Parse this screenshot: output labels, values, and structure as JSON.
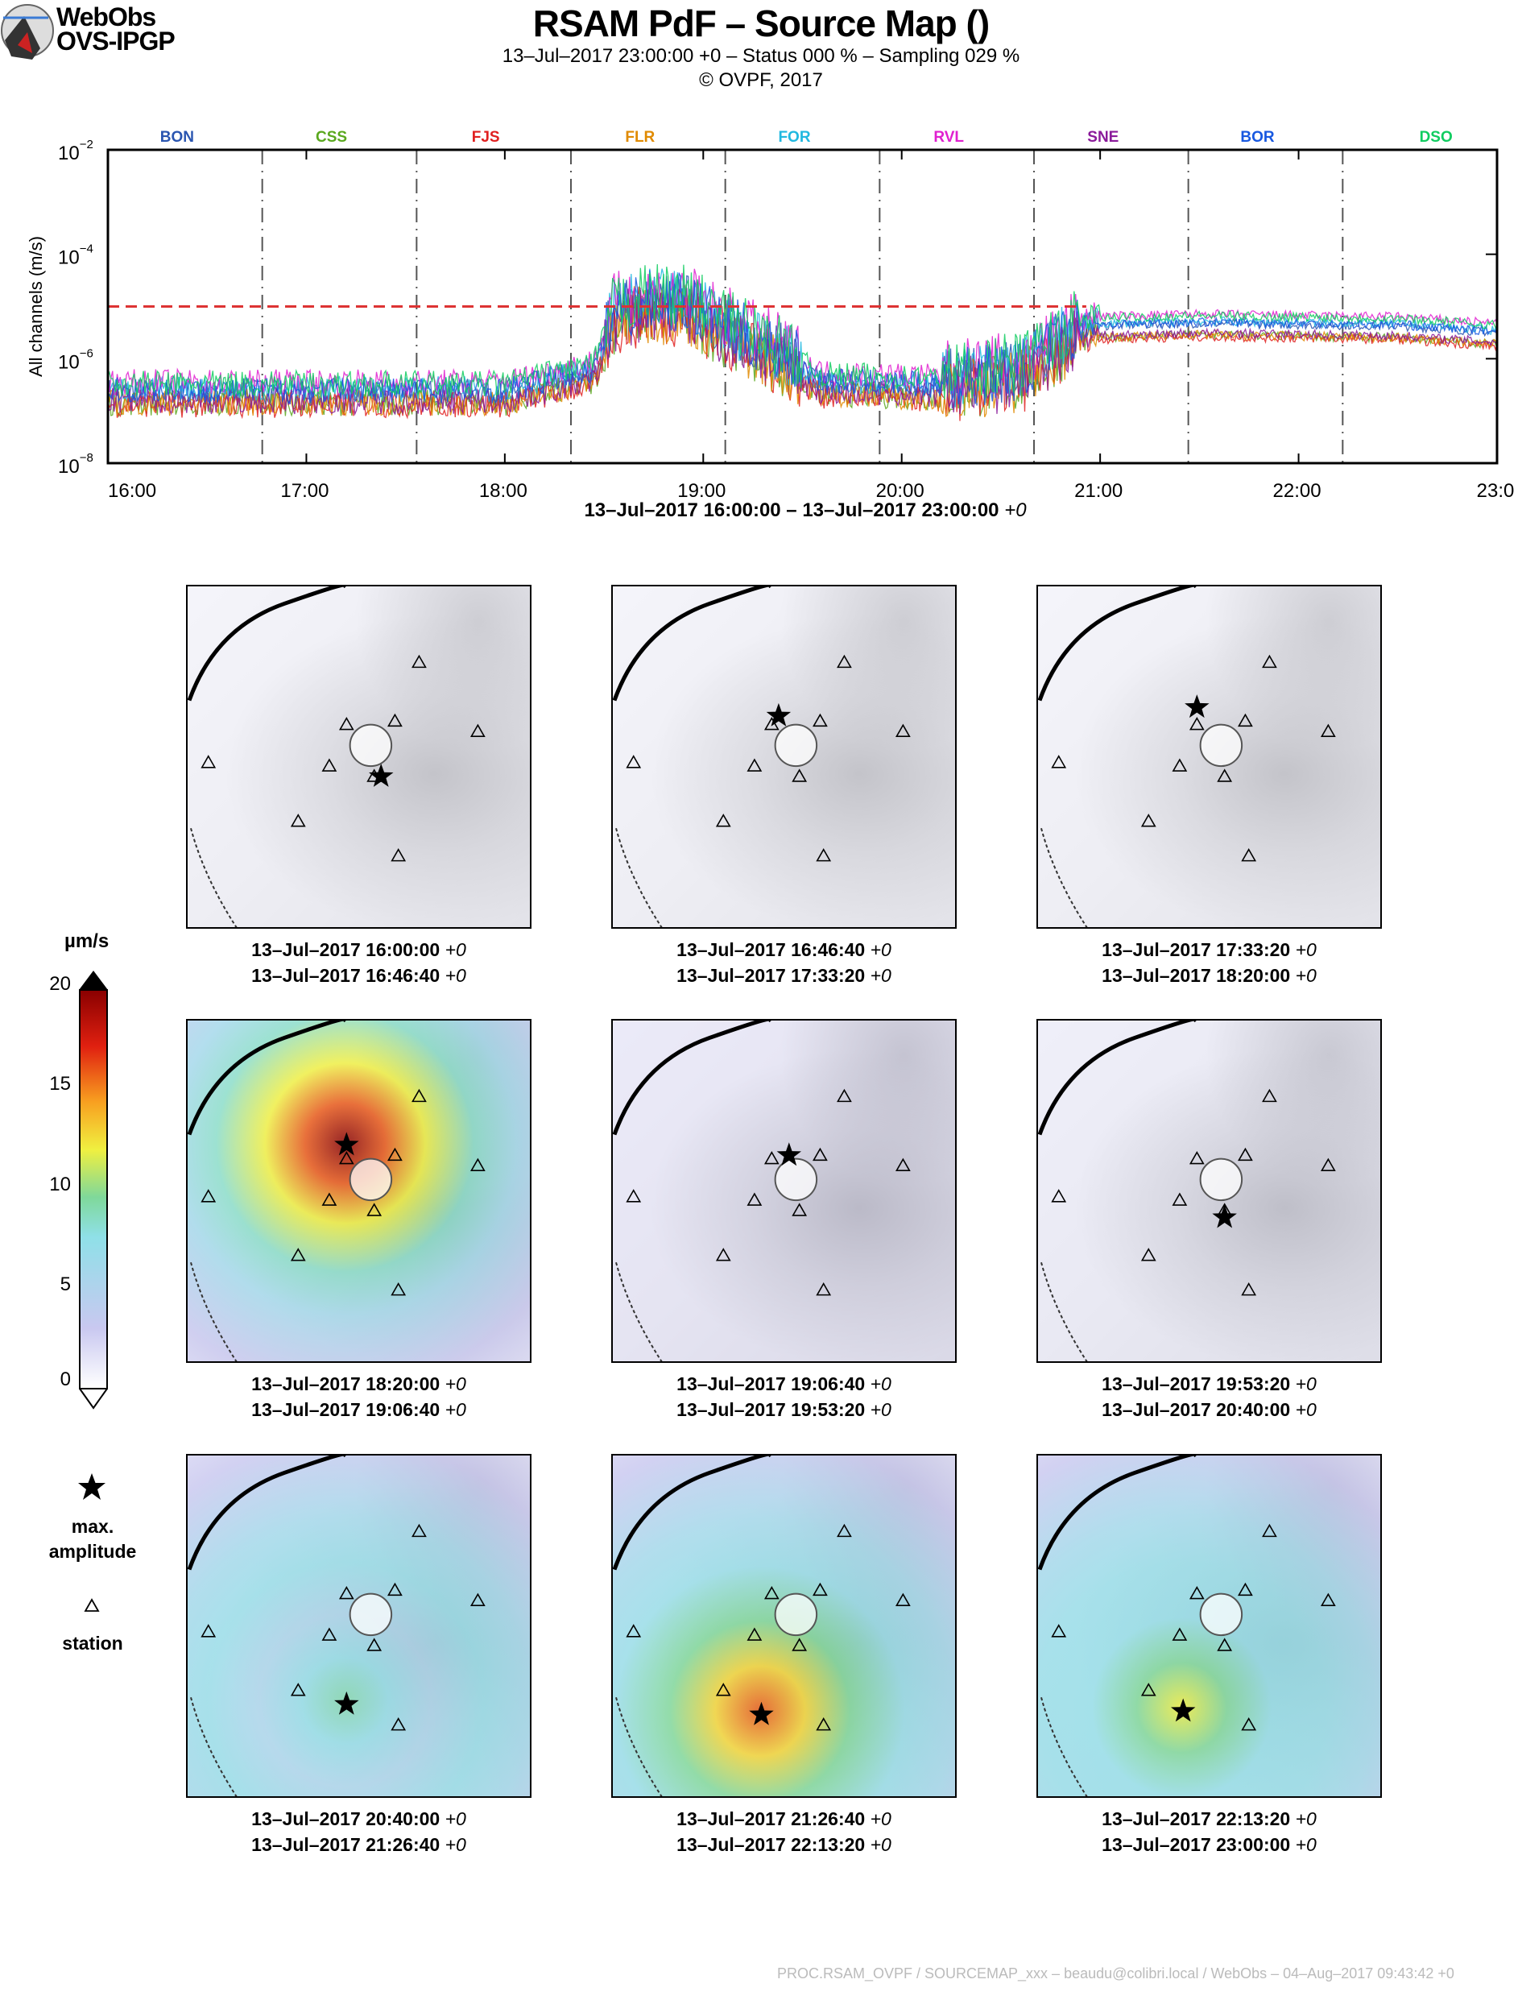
{
  "header": {
    "logo_line1": "WebObs",
    "logo_line2": "OVS-IPGP",
    "title": "RSAM PdF – Source Map ()",
    "subtitle": "13–Jul–2017 23:00:00 +0 – Status 000 % – Sampling 029 %",
    "copyright": "© OVPF, 2017"
  },
  "chart_data": {
    "type": "line",
    "title": "",
    "xlabel": "13–Jul–2017 16:00:00 – 13–Jul–2017 23:00:00",
    "xlabel_tz": "+0",
    "ylabel": "All channels (m/s)",
    "yscale": "log",
    "ylim": [
      1e-08,
      0.01
    ],
    "xlim_hours": [
      16,
      23
    ],
    "x_ticks": [
      "16:00",
      "17:00",
      "18:00",
      "19:00",
      "20:00",
      "21:00",
      "22:00",
      "23:0"
    ],
    "y_ticks": [
      {
        "base": "10",
        "exp": "−2"
      },
      {
        "base": "10",
        "exp": "−4"
      },
      {
        "base": "10",
        "exp": "−6"
      },
      {
        "base": "10",
        "exp": "−8"
      }
    ],
    "y_tick_values": [
      0.01,
      0.0001,
      1e-06,
      1e-08
    ],
    "threshold": 1e-05,
    "threshold_color": "#dd3333",
    "window_boundaries_hours": [
      16.7778,
      17.5556,
      18.3333,
      19.1111,
      19.8889,
      20.6667,
      21.4444,
      22.2222
    ],
    "profile_hours": [
      16.0,
      17.0,
      18.0,
      18.2,
      18.45,
      18.55,
      18.7,
      18.9,
      19.1,
      19.4,
      19.6,
      20.2,
      20.6,
      20.95,
      21.5,
      22.5,
      23.0
    ],
    "profile_values": [
      2e-07,
      2e-07,
      2e-07,
      3e-07,
      5e-07,
      5e-06,
      8e-06,
      8e-06,
      3e-06,
      8e-07,
      3e-07,
      2.5e-07,
      4e-07,
      4e-06,
      4.5e-06,
      4e-06,
      3e-06
    ],
    "series": [
      {
        "name": "BON",
        "color": "#2a55b0",
        "factor": 1.0
      },
      {
        "name": "CSS",
        "color": "#5aa81e",
        "factor": 0.6
      },
      {
        "name": "FJS",
        "color": "#e02020",
        "factor": 0.55
      },
      {
        "name": "FLR",
        "color": "#e08a00",
        "factor": 0.6
      },
      {
        "name": "FOR",
        "color": "#20b8e0",
        "factor": 1.1
      },
      {
        "name": "RVL",
        "color": "#e020d0",
        "factor": 1.5
      },
      {
        "name": "SNE",
        "color": "#8a1a9a",
        "factor": 0.65
      },
      {
        "name": "BOR",
        "color": "#1858e0",
        "factor": 1.05
      },
      {
        "name": "DSO",
        "color": "#10cc60",
        "factor": 1.4
      }
    ]
  },
  "colorbar": {
    "unit": "µm/s",
    "ticks": [
      "20",
      "15",
      "10",
      "5",
      "0"
    ],
    "range": [
      0,
      20
    ]
  },
  "legend": {
    "star_label_1": "max.",
    "star_label_2": "amplitude",
    "station_label": "station"
  },
  "panels": [
    {
      "start": "13–Jul–2017 16:00:00",
      "end": "13–Jul–2017 16:46:40",
      "tz": "+0",
      "max_amplitude_um_s": 1
    },
    {
      "start": "13–Jul–2017 16:46:40",
      "end": "13–Jul–2017 17:33:20",
      "tz": "+0",
      "max_amplitude_um_s": 1
    },
    {
      "start": "13–Jul–2017 17:33:20",
      "end": "13–Jul–2017 18:20:00",
      "tz": "+0",
      "max_amplitude_um_s": 1
    },
    {
      "start": "13–Jul–2017 18:20:00",
      "end": "13–Jul–2017 19:06:40",
      "tz": "+0",
      "max_amplitude_um_s": 20
    },
    {
      "start": "13–Jul–2017 19:06:40",
      "end": "13–Jul–2017 19:53:20",
      "tz": "+0",
      "max_amplitude_um_s": 2
    },
    {
      "start": "13–Jul–2017 19:53:20",
      "end": "13–Jul–2017 20:40:00",
      "tz": "+0",
      "max_amplitude_um_s": 1.5
    },
    {
      "start": "13–Jul–2017 20:40:00",
      "end": "13–Jul–2017 21:26:40",
      "tz": "+0",
      "max_amplitude_um_s": 9
    },
    {
      "start": "13–Jul–2017 21:26:40",
      "end": "13–Jul–2017 22:13:20",
      "tz": "+0",
      "max_amplitude_um_s": 16
    },
    {
      "start": "13–Jul–2017 22:13:20",
      "end": "13–Jul–2017 23:00:00",
      "tz": "+0",
      "max_amplitude_um_s": 12
    }
  ],
  "footer": "PROC.RSAM_OVPF / SOURCEMAP_xxx – beaudu@colibri.local / WebObs – 04–Aug–2017 09:43:42 +0"
}
